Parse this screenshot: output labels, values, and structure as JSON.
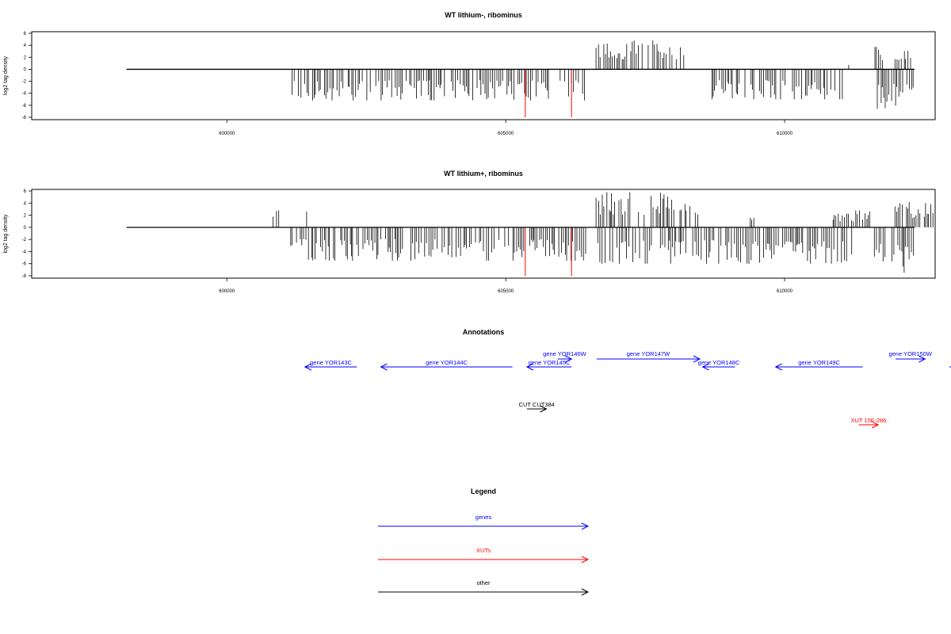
{
  "chart_data": [
    {
      "type": "bar",
      "title": "WT lithium-, ribominus",
      "ylabel": "log2 tag density",
      "xlim": [
        596500,
        612700
      ],
      "ylim": [
        -8,
        6
      ],
      "xticks": [
        600000,
        605000,
        610000
      ],
      "yticks": [
        6,
        4,
        2,
        0,
        -2,
        -4,
        -6,
        -8
      ],
      "baseline": {
        "x": [
          598200,
          612330
        ],
        "y": 0
      },
      "positive_segments": [
        {
          "x0": 611150,
          "x1": 611180,
          "max": 1.5
        },
        {
          "x0": 606620,
          "x1": 608220,
          "max": 4.8
        },
        {
          "x0": 611620,
          "x1": 611790,
          "max": 3.8
        },
        {
          "x0": 611980,
          "x1": 612260,
          "max": 3.2
        }
      ],
      "negative_segments": [
        {
          "x0": 601170,
          "x1": 606480,
          "max": 5.2
        },
        {
          "x0": 608700,
          "x1": 611040,
          "max": 5.0
        },
        {
          "x0": 611610,
          "x1": 612320,
          "max": 6.8
        }
      ],
      "red_lines": [
        {
          "x": 605350,
          "y": -8
        },
        {
          "x": 606180,
          "y": -8
        }
      ]
    },
    {
      "type": "bar",
      "title": "WT lithium+, ribominus",
      "ylabel": "log2 tag density",
      "xlim": [
        596500,
        612700
      ],
      "ylim": [
        -8,
        6
      ],
      "xticks": [
        600000,
        605000,
        610000
      ],
      "yticks": [
        6,
        4,
        2,
        0,
        -2,
        -4,
        -6,
        -8
      ],
      "baseline": {
        "x": [
          598200,
          612330
        ],
        "y": 0
      },
      "positive_segments": [
        {
          "x0": 600800,
          "x1": 600960,
          "max": 2.8
        },
        {
          "x0": 601430,
          "x1": 601460,
          "max": 3.2
        },
        {
          "x0": 602620,
          "x1": 602650,
          "max": 1.8
        },
        {
          "x0": 606620,
          "x1": 608450,
          "max": 5.8
        },
        {
          "x0": 609350,
          "x1": 609450,
          "max": 3.0
        },
        {
          "x0": 610870,
          "x1": 611560,
          "max": 2.8
        },
        {
          "x0": 611980,
          "x1": 612670,
          "max": 4.5
        }
      ],
      "negative_segments": [
        {
          "x0": 601060,
          "x1": 606480,
          "max": 5.5
        },
        {
          "x0": 606650,
          "x1": 611220,
          "max": 6.0
        },
        {
          "x0": 611610,
          "x1": 612320,
          "max": 7.8
        }
      ],
      "red_lines": [
        {
          "x": 605350,
          "y": -8
        },
        {
          "x": 606180,
          "y": -8
        }
      ]
    }
  ],
  "annotations": {
    "title": "Annotations",
    "items": [
      {
        "label": "gene YOR143C",
        "color": "#0000ff",
        "row": 1,
        "x0": 601400,
        "x1": 602330,
        "dir": "left"
      },
      {
        "label": "gene YOR144C",
        "color": "#0000ff",
        "row": 1,
        "x0": 602760,
        "x1": 605120,
        "dir": "left"
      },
      {
        "label": "gene YOR145C",
        "color": "#0000ff",
        "row": 1,
        "x0": 605380,
        "x1": 606180,
        "dir": "left"
      },
      {
        "label": "gene YOR146W",
        "color": "#0000ff",
        "row": 0,
        "x0": 605930,
        "x1": 606180,
        "dir": "right"
      },
      {
        "label": "gene YOR147W",
        "color": "#0000ff",
        "row": 0,
        "x0": 606630,
        "x1": 608480,
        "dir": "right"
      },
      {
        "label": "gene YOR148C",
        "color": "#0000ff",
        "row": 1,
        "x0": 608530,
        "x1": 609110,
        "dir": "left"
      },
      {
        "label": "gene YOR149C",
        "color": "#0000ff",
        "row": 1,
        "x0": 609840,
        "x1": 611400,
        "dir": "left"
      },
      {
        "label": "gene YOR150W",
        "color": "#0000ff",
        "row": 0,
        "x0": 611990,
        "x1": 612520,
        "dir": "right"
      },
      {
        "label": "",
        "color": "#0000ff",
        "row": 1,
        "x0": 612990,
        "x1": 613900,
        "dir": "left"
      },
      {
        "label": "CUT CUT384",
        "color": "#000000",
        "row": 2,
        "x0": 605380,
        "x1": 605730,
        "dir": "right"
      },
      {
        "label": "XUT 15F-286",
        "color": "#ff0000",
        "row": 3,
        "x0": 611330,
        "x1": 611680,
        "dir": "right"
      }
    ]
  },
  "legend": {
    "title": "Legend",
    "items": [
      {
        "label": "genes",
        "color": "#0000ff"
      },
      {
        "label": "XUTs",
        "color": "#ff0000"
      },
      {
        "label": "other",
        "color": "#000000"
      }
    ]
  }
}
